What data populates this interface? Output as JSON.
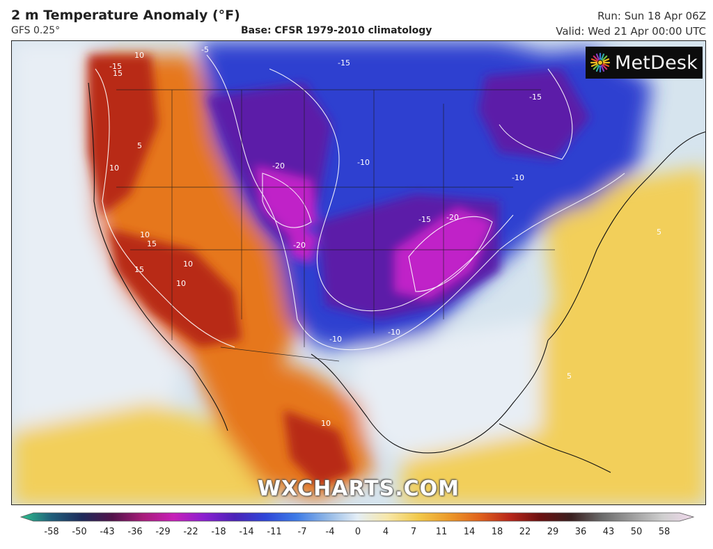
{
  "header": {
    "title": "2 m Temperature Anomaly (°F)",
    "subtitle": "GFS 0.25°",
    "base": "Base: CFSR 1979-2010 climatology",
    "run": "Run: Sun 18 Apr 06Z",
    "valid": "Valid: Wed 21 Apr 00:00 UTC"
  },
  "branding": {
    "logo_text": "MetDesk",
    "logo_icon": "starburst-logo-icon",
    "watermark": "WXCHARTS.COM"
  },
  "map": {
    "region": "North America",
    "contour_labels": [
      "-15",
      "-5",
      "-15",
      "-15",
      "-20",
      "-10",
      "-10",
      "-15",
      "-20",
      "-20",
      "-10",
      "-10",
      "5",
      "10",
      "15",
      "10",
      "15",
      "10",
      "15",
      "10",
      "10",
      "5",
      "5",
      "10"
    ],
    "colors": {
      "ocean": "#d6e4ee",
      "strong_cold": "#c020c8",
      "cold": "#5b1fa8",
      "cool": "#2f3fd0",
      "mild_cool": "#5f8ee0",
      "near_normal": "#e8eef5",
      "warm": "#f2cf5a",
      "hot": "#e6771e",
      "very_hot": "#b82a16"
    }
  },
  "colorbar": {
    "ticks": [
      "-58",
      "-50",
      "-43",
      "-36",
      "-29",
      "-22",
      "-18",
      "-14",
      "-11",
      "-7",
      "-4",
      "0",
      "4",
      "7",
      "11",
      "14",
      "18",
      "22",
      "29",
      "36",
      "43",
      "50",
      "58"
    ],
    "colors": [
      "#2fc08e",
      "#1f5e7a",
      "#1e2a5a",
      "#52124a",
      "#a81c7a",
      "#c71fb8",
      "#8a1fd0",
      "#4a22b8",
      "#2e46d8",
      "#3d7ae6",
      "#8fb6e6",
      "#e4eef6",
      "#f7e7a8",
      "#f2c94a",
      "#ec9a2a",
      "#e0621c",
      "#b8261a",
      "#6a1010",
      "#3a2020",
      "#6a6a6a",
      "#9e9e9e",
      "#cfcfcf",
      "#f0d8ec"
    ]
  }
}
